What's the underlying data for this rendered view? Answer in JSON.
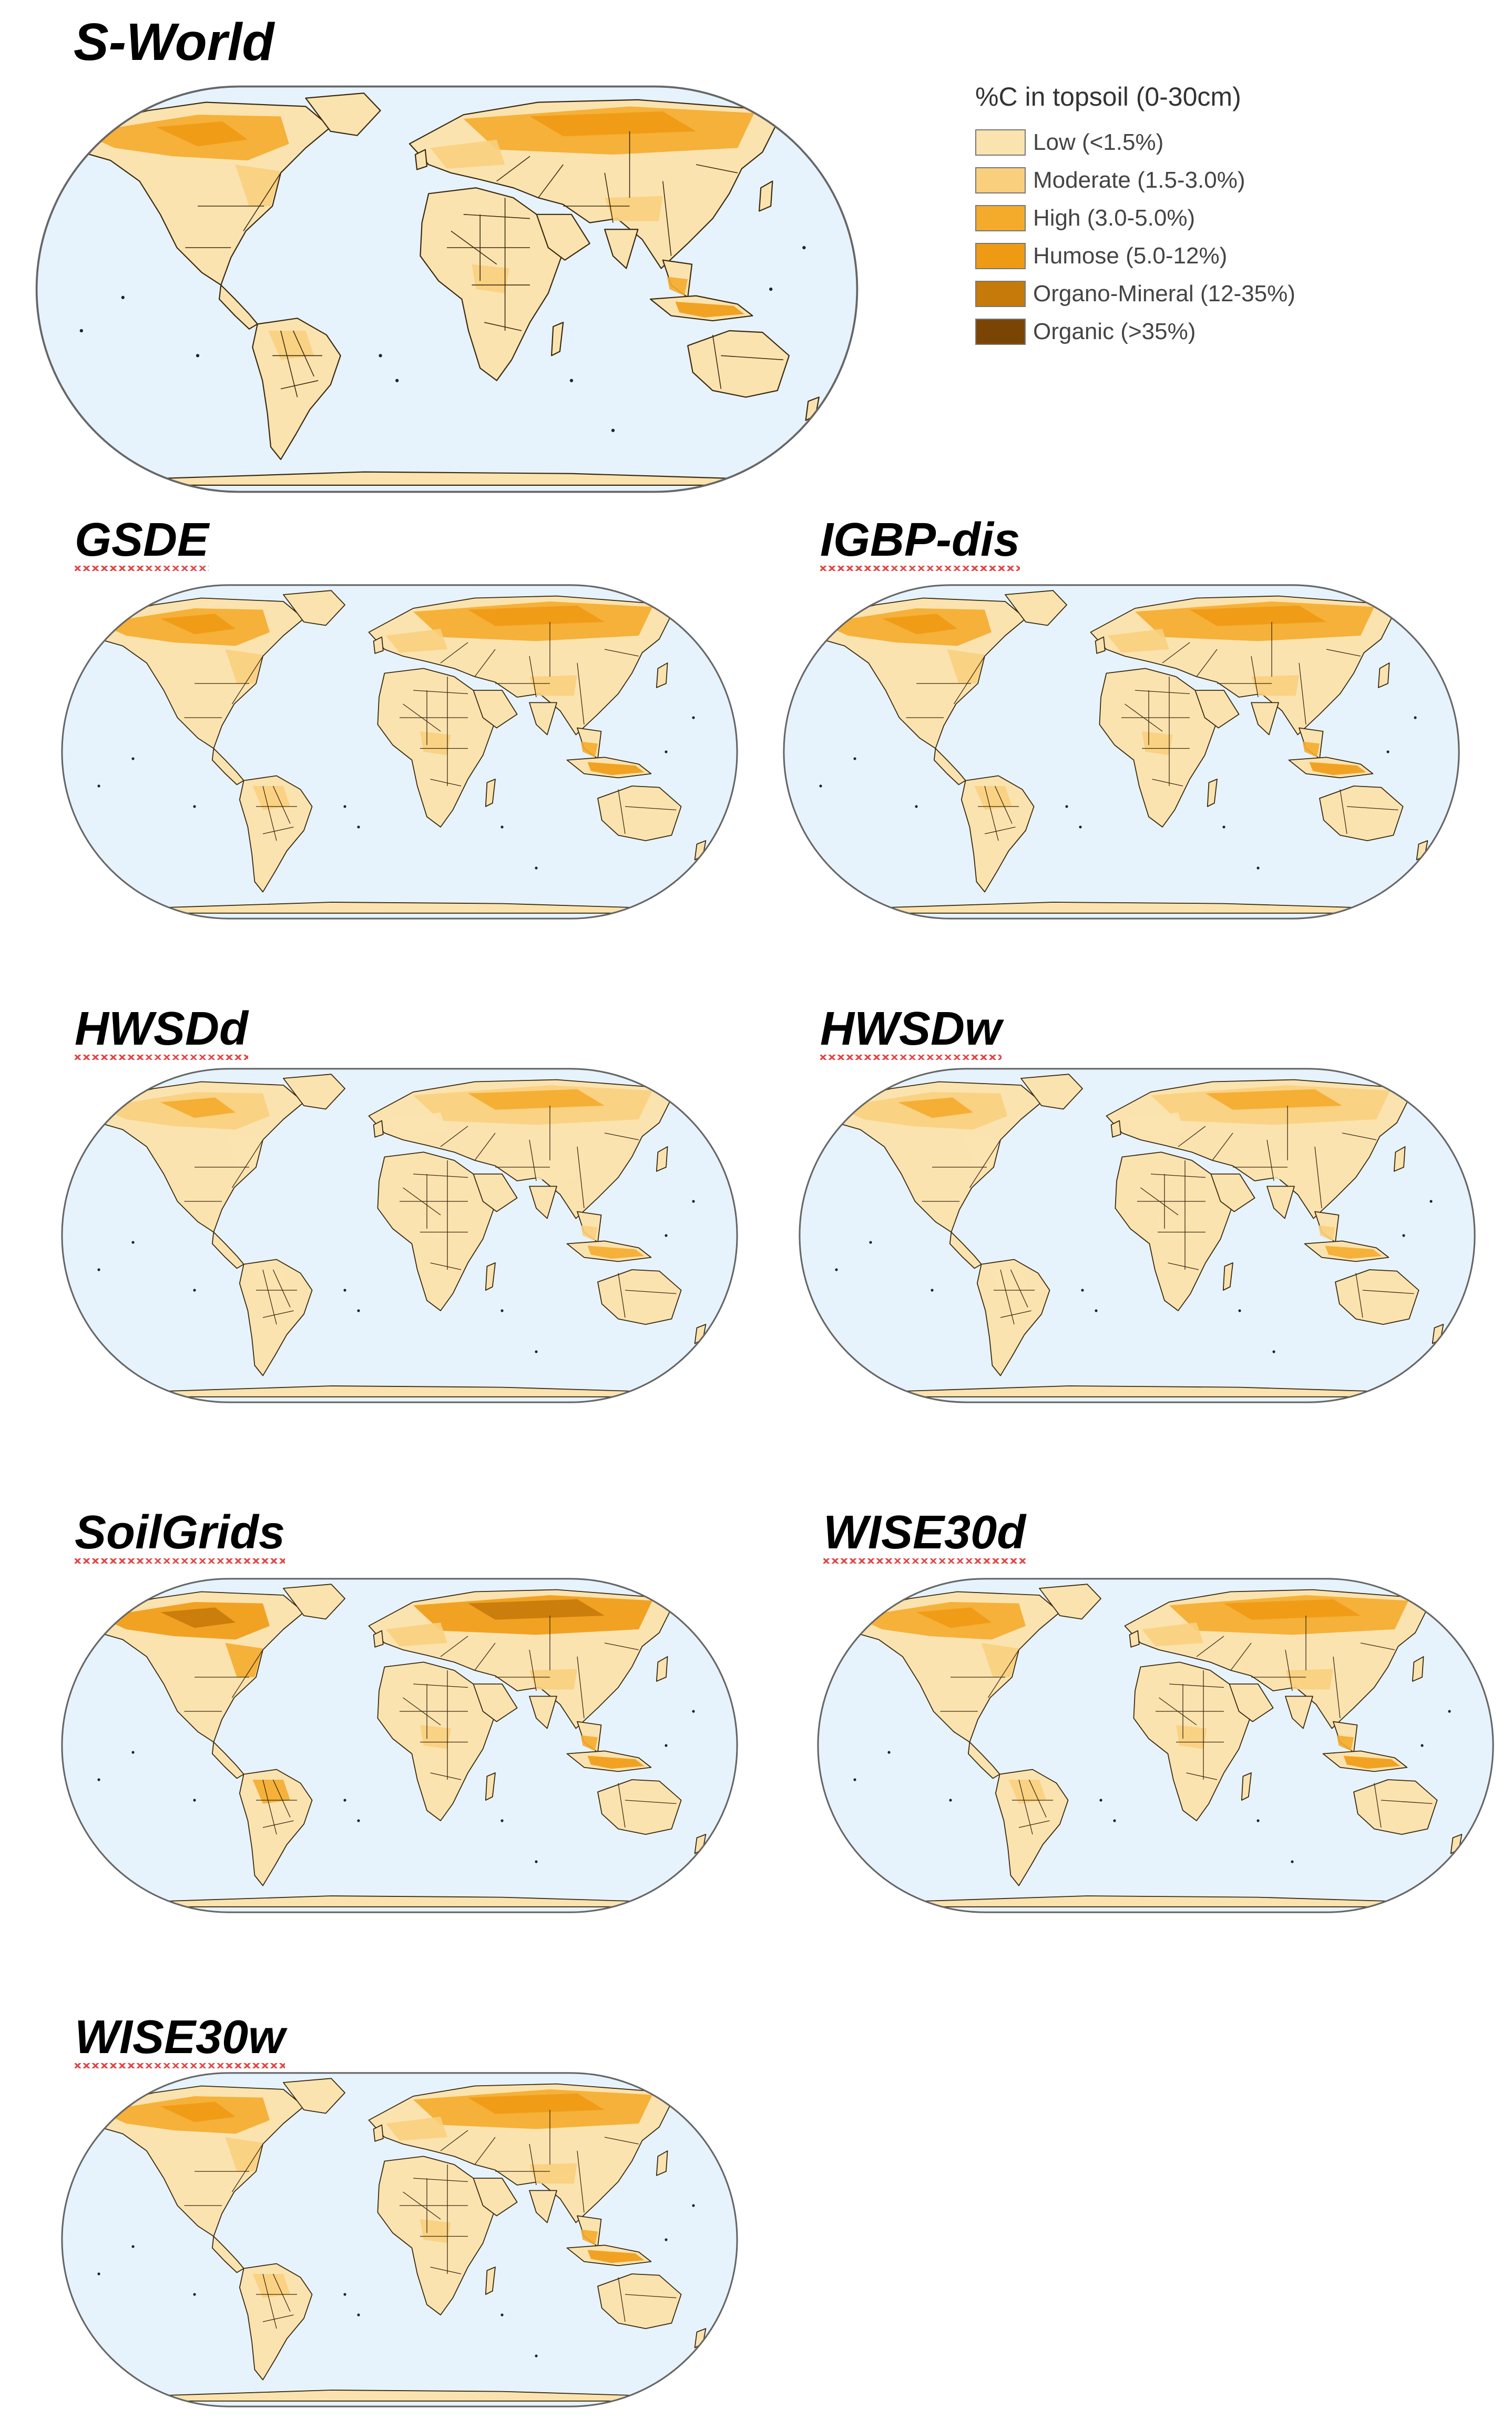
{
  "panels": [
    {
      "id": "sworld",
      "title": "S-World",
      "underlined": false
    },
    {
      "id": "gsde",
      "title": "GSDE",
      "underlined": true
    },
    {
      "id": "igbp",
      "title": "IGBP-dis",
      "underlined": true
    },
    {
      "id": "hwsdd",
      "title": "HWSDd",
      "underlined": true
    },
    {
      "id": "hwsdw",
      "title": "HWSDw",
      "underlined": true
    },
    {
      "id": "soilgrids",
      "title": "SoilGrids",
      "underlined": true
    },
    {
      "id": "wise30d",
      "title": "WISE30d",
      "underlined": true
    },
    {
      "id": "wise30w",
      "title": "WISE30w",
      "underlined": true
    }
  ],
  "legend": {
    "title": "%C in topsoil (0-30cm)",
    "classes": [
      {
        "label": "Low (<1.5%)",
        "color": "#fbe3b0"
      },
      {
        "label": "Moderate (1.5-3.0%)",
        "color": "#f9cf7e"
      },
      {
        "label": "High (3.0-5.0%)",
        "color": "#f4ab2c"
      },
      {
        "label": "Humose (5.0-12%)",
        "color": "#ef9a14"
      },
      {
        "label": "Organo-Mineral (12-35%)",
        "color": "#c67a0a"
      },
      {
        "label": "Organic (>35%)",
        "color": "#7a4504"
      }
    ]
  },
  "map_style": {
    "ocean_color": "#e6f3fd",
    "frame_color": "#666666",
    "border_color": "#3a2a10"
  }
}
